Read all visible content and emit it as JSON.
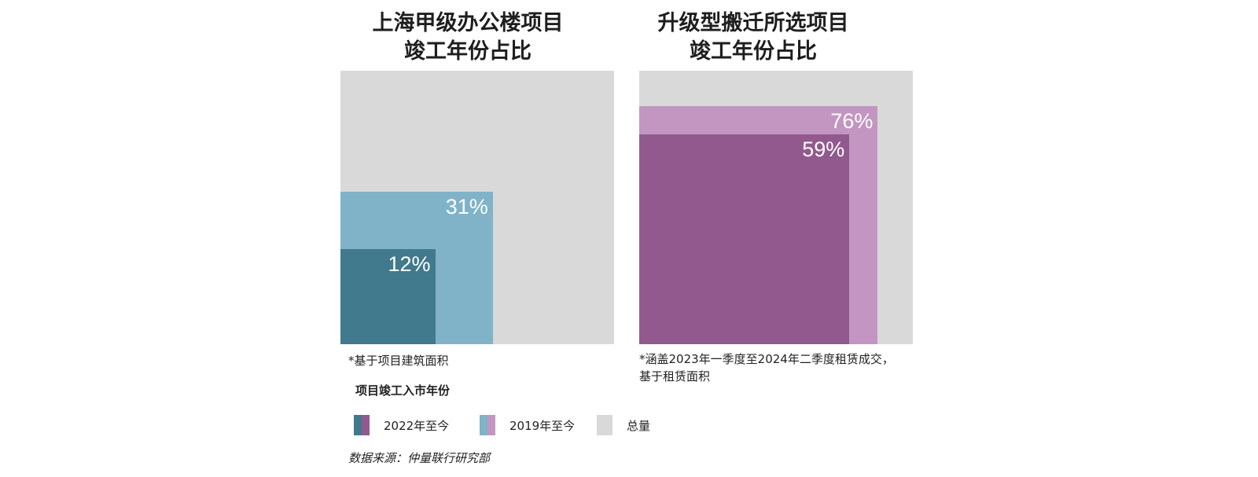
{
  "chart_data": [
    {
      "type": "nested-square",
      "title_lines": [
        "上海甲级办公楼项目",
        "竣工年份占比"
      ],
      "series": [
        {
          "name": "2019年至今",
          "value": 31,
          "label": "31%",
          "color": "#80b3c8"
        },
        {
          "name": "2022年至今",
          "value": 12,
          "label": "12%",
          "color": "#41798d"
        }
      ],
      "total": {
        "name": "总量",
        "value": 100,
        "color": "#d9d9d9"
      },
      "note": "*基于项目建筑面积"
    },
    {
      "type": "nested-square",
      "title_lines": [
        "升级型搬迁所选项目",
        "竣工年份占比"
      ],
      "series": [
        {
          "name": "2019年至今",
          "value": 76,
          "label": "76%",
          "color": "#c396c2"
        },
        {
          "name": "2022年至今",
          "value": 59,
          "label": "59%",
          "color": "#92598f"
        }
      ],
      "total": {
        "name": "总量",
        "value": 100,
        "color": "#d9d9d9"
      },
      "note_lines": [
        "*涵盖2023年一季度至2024年二季度租赁成交，",
        "基于租赁面积"
      ]
    }
  ],
  "legend": {
    "title": "项目竣工入市年份",
    "items": [
      {
        "label": "2022年至今",
        "colors": [
          "#41798d",
          "#92598f"
        ]
      },
      {
        "label": "2019年至今",
        "colors": [
          "#80b3c8",
          "#c396c2"
        ]
      },
      {
        "label": "总量",
        "colors": [
          "#d9d9d9",
          "#d9d9d9"
        ]
      }
    ]
  },
  "source": "数据来源：仲量联行研究部"
}
